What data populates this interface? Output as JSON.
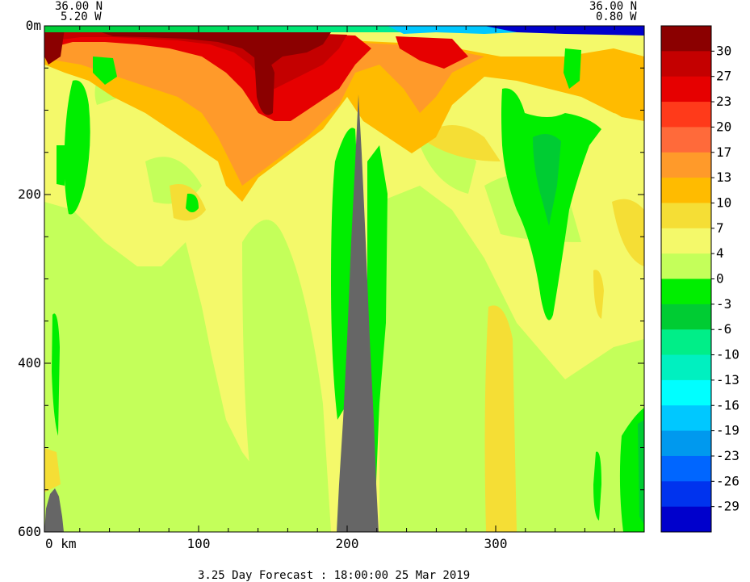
{
  "chart_data": {
    "type": "heatmap",
    "corner_left": {
      "lat": "36.00 N",
      "lon": "5.20 W"
    },
    "corner_right": {
      "lat": "36.00 N",
      "lon": "0.80 W"
    },
    "depth_axis": {
      "top_label": "0m",
      "ticks": [
        200,
        400,
        600
      ],
      "range": [
        0,
        600
      ]
    },
    "distance_axis": {
      "ticks": [
        "0 km",
        "100",
        "200",
        "300"
      ],
      "tick_values": [
        0,
        100,
        200,
        300
      ],
      "range": [
        0,
        400
      ]
    },
    "colorbar": {
      "labels": [
        "30",
        "27",
        "23",
        "20",
        "17",
        "13",
        "10",
        "7",
        "4",
        "0",
        "-3",
        "-6",
        "-10",
        "-13",
        "-16",
        "-19",
        "-23",
        "-26",
        "-29"
      ],
      "colors": [
        "#8b0000",
        "#c40000",
        "#e60000",
        "#ff3a1a",
        "#ff6a3a",
        "#ff9a2a",
        "#ffbb00",
        "#f5de35",
        "#f4f96a",
        "#c4ff5a",
        "#00ee00",
        "#00cc33",
        "#00ee88",
        "#00f0c0",
        "#00ffff",
        "#00c8ff",
        "#0099ee",
        "#0066ff",
        "#0033ee",
        "#0000cc"
      ]
    },
    "caption": "3.25 Day Forecast : 18:00:00  25 Mar 2019"
  }
}
